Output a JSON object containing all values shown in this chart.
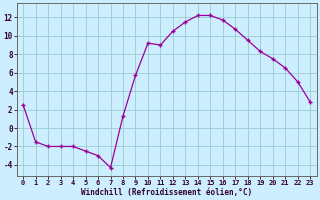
{
  "x": [
    0,
    1,
    2,
    3,
    4,
    5,
    6,
    7,
    8,
    9,
    10,
    11,
    12,
    13,
    14,
    15,
    16,
    17,
    18,
    19,
    20,
    21,
    22,
    23
  ],
  "y": [
    2.5,
    -1.5,
    -2.0,
    -2.0,
    -2.0,
    -2.5,
    -3.0,
    -4.3,
    1.3,
    5.7,
    9.2,
    9.0,
    10.5,
    11.5,
    12.2,
    12.2,
    11.7,
    10.7,
    9.5,
    8.3,
    7.5,
    6.5,
    5.0,
    2.8
  ],
  "line_color": "#990099",
  "marker": "+",
  "marker_size": 3,
  "marker_linewidth": 1.0,
  "line_width": 0.9,
  "bg_color": "#cceeff",
  "grid_color": "#99cccc",
  "xlabel": "Windchill (Refroidissement éolien,°C)",
  "ylabel_ticks": [
    -4,
    -2,
    0,
    2,
    4,
    6,
    8,
    10,
    12
  ],
  "xticks": [
    0,
    1,
    2,
    3,
    4,
    5,
    6,
    7,
    8,
    9,
    10,
    11,
    12,
    13,
    14,
    15,
    16,
    17,
    18,
    19,
    20,
    21,
    22,
    23
  ],
  "ylim": [
    -5.2,
    13.5
  ],
  "xlim": [
    -0.5,
    23.5
  ],
  "axis_label_color": "#330033",
  "tick_color": "#330033",
  "tick_fontsize": 5.0,
  "xlabel_fontsize": 5.5,
  "spine_color": "#666666"
}
